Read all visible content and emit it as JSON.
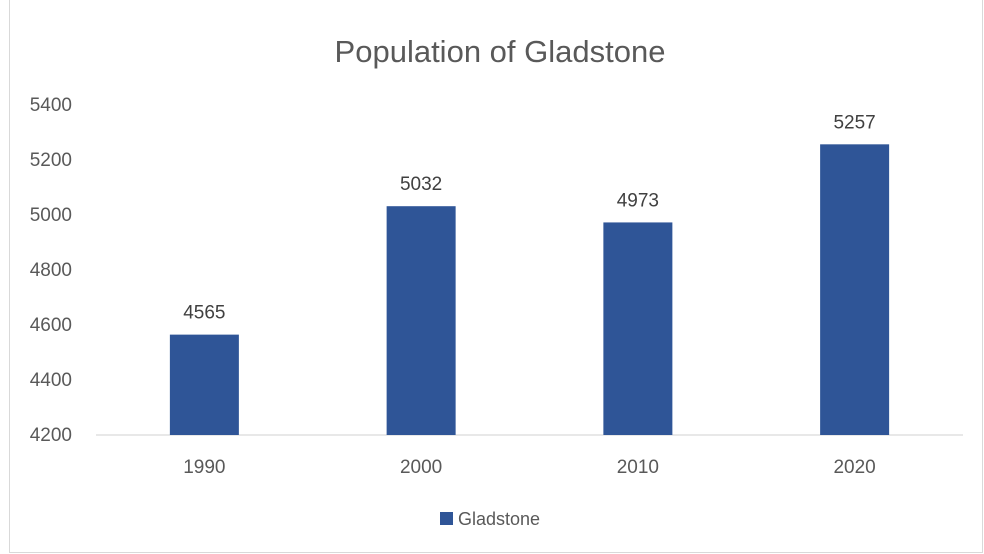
{
  "chart_data": {
    "type": "bar",
    "title": "Population of Gladstone",
    "categories": [
      "1990",
      "2000",
      "2010",
      "2020"
    ],
    "series": [
      {
        "name": "Gladstone",
        "values": [
          4565,
          5032,
          4973,
          5257
        ]
      }
    ],
    "data_labels": [
      "4565",
      "5032",
      "4973",
      "5257"
    ],
    "yticks": [
      "4200",
      "4400",
      "4600",
      "4800",
      "5000",
      "5200",
      "5400"
    ],
    "ylim": [
      4200,
      5400
    ],
    "grid": false,
    "legend_position": "bottom",
    "colors": {
      "bar": "#2F5597",
      "axis": "#d9d9d9"
    }
  }
}
